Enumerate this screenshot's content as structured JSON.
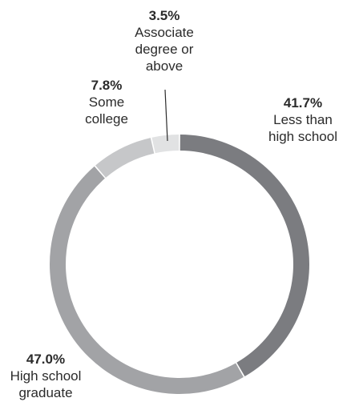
{
  "chart_data": {
    "type": "pie",
    "donut": true,
    "title": "",
    "slices": [
      {
        "label": "Less than\nhigh school",
        "percent_label": "41.7%",
        "value": 41.7,
        "color": "#7b7c80"
      },
      {
        "label": "High school\ngraduate",
        "percent_label": "47.0%",
        "value": 47.0,
        "color": "#a2a3a6"
      },
      {
        "label": "Some\ncollege",
        "percent_label": "7.8%",
        "value": 7.8,
        "color": "#c6c7c9"
      },
      {
        "label": "Associate\ndegree or\nabove",
        "percent_label": "3.5%",
        "value": 3.5,
        "color": "#e1e2e3"
      }
    ],
    "start_angle_deg": 0,
    "direction": "clockwise",
    "legend": "none"
  }
}
